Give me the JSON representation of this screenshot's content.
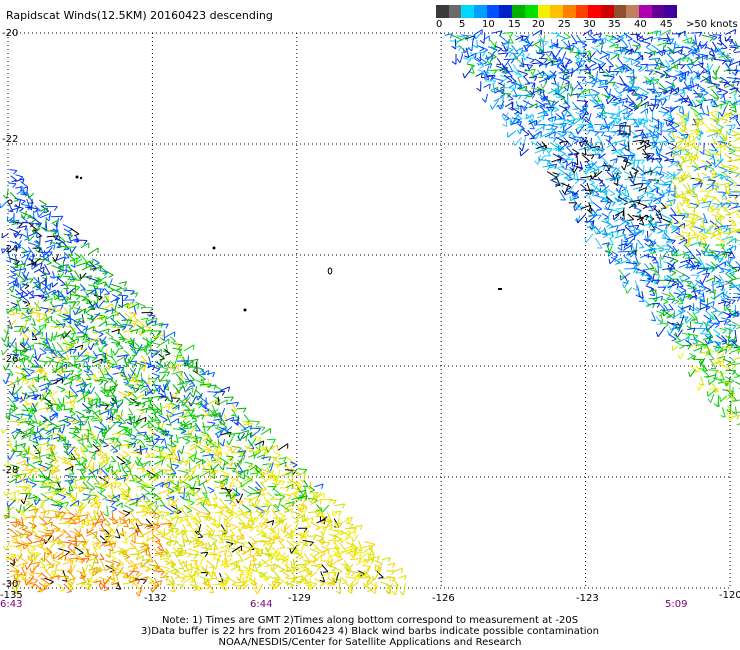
{
  "title": "Rapidscat Winds(12.5KM) 20160423 descending",
  "legend": {
    "colors": [
      "#3a3a3a",
      "#6a6a6a",
      "#00d8ff",
      "#00a0ff",
      "#0050ff",
      "#0020c8",
      "#00b000",
      "#00e000",
      "#f0f000",
      "#ffc000",
      "#ff8000",
      "#ff4000",
      "#ff0000",
      "#d00000",
      "#905030",
      "#c08060",
      "#b000b0",
      "#600090",
      "#4000a0"
    ],
    "labels": [
      "0",
      "5",
      "10",
      "15",
      "20",
      "25",
      "30",
      "35",
      "40",
      "45",
      ">50 knots"
    ]
  },
  "axes": {
    "x_ticks": [
      "-135",
      "-132",
      "-129",
      "-126",
      "-123",
      "-120"
    ],
    "y_ticks": [
      "-20",
      "-22",
      "-24",
      "-26",
      "-28",
      "-30"
    ]
  },
  "times": [
    "6:43",
    "6:44",
    "5:09"
  ],
  "notes": [
    "Note: 1) Times are GMT 2)Times along bottom correspond to measurement at -20S",
    "3)Data buffer is 22 hrs from 20160423 4) Black wind barbs indicate possible contamination",
    "NOAA/NESDIS/Center for Satellite Applications and Research"
  ],
  "map_data": {
    "lon_range": [
      -135,
      -120
    ],
    "lat_range": [
      -30,
      -20
    ],
    "grid": "dotted",
    "swaths": [
      {
        "side": "west",
        "dominant_colors": [
          "blue",
          "green",
          "yellow",
          "orange"
        ]
      },
      {
        "side": "east",
        "dominant_colors": [
          "blue",
          "cyan",
          "green",
          "yellow"
        ]
      }
    ]
  }
}
